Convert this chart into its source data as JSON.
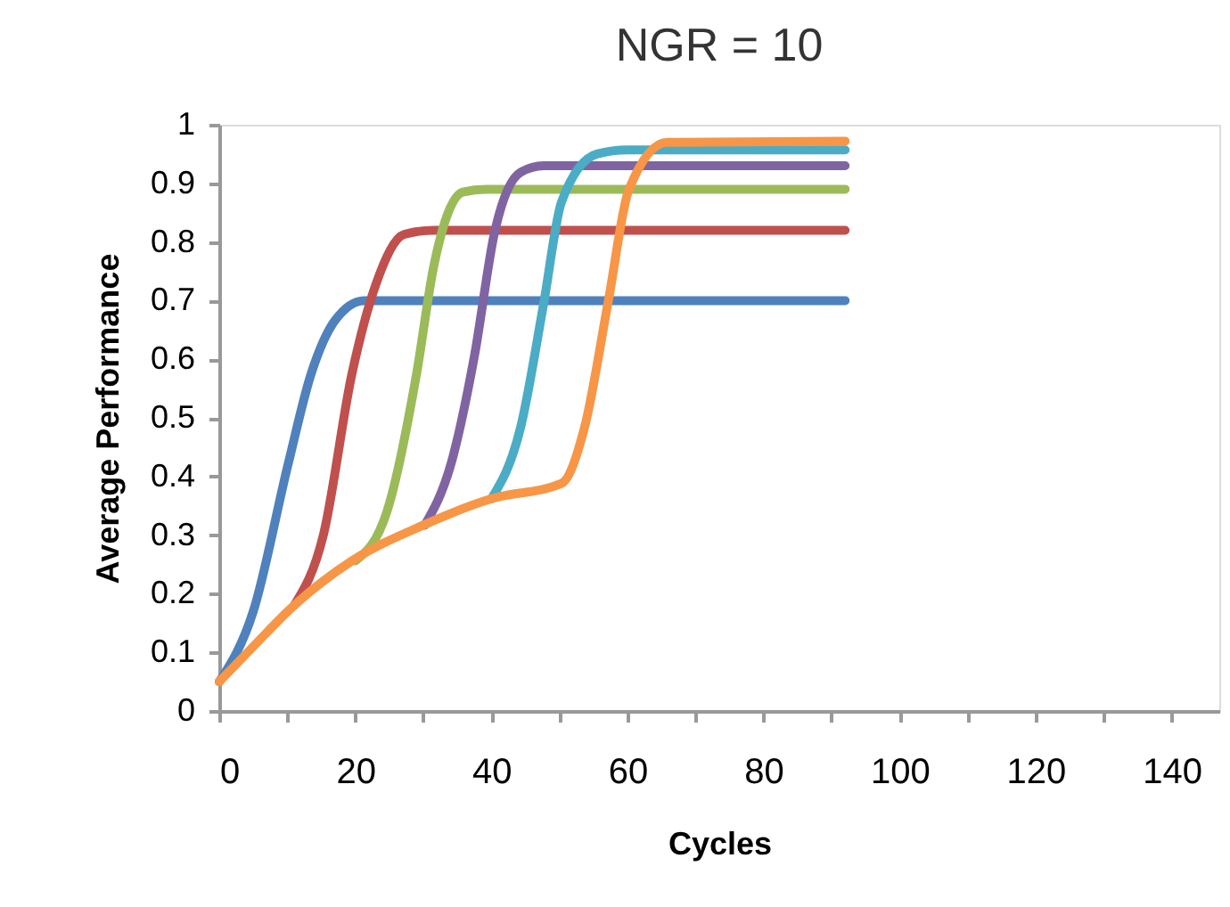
{
  "chart_data": {
    "type": "line",
    "title": "NGR = 10",
    "xlabel": "Cycles",
    "ylabel": "Average Performance",
    "xlim": [
      0,
      147
    ],
    "xticks": [
      0,
      {
        "value": 10,
        "label": null
      },
      20,
      {
        "value": 30,
        "label": null
      },
      40,
      {
        "value": 50,
        "label": null
      },
      60,
      {
        "value": 70,
        "label": null
      },
      80,
      {
        "value": 90,
        "label": null
      },
      100,
      {
        "value": 110,
        "label": null
      },
      120,
      {
        "value": 130,
        "label": null
      },
      140
    ],
    "ylim": [
      0,
      1
    ],
    "yticks": [
      0,
      0.1,
      0.2,
      0.3,
      0.4,
      0.5,
      0.6,
      0.7,
      0.8,
      0.9,
      1
    ],
    "grid": false,
    "legend": false,
    "marker": "none",
    "line_style": "solid",
    "series": [
      {
        "color": "#4f81bd",
        "x": [
          0,
          5,
          10.1,
          13.5,
          17,
          21.3,
          25,
          92
        ],
        "values": [
          0.05,
          0.17,
          0.42,
          0.575,
          0.666,
          0.7,
          0.7,
          0.7
        ]
      },
      {
        "color": "#c0504d",
        "x": [
          11,
          15.3,
          19.5,
          23,
          27.2,
          31.5,
          92
        ],
        "values": [
          0.18,
          0.3,
          0.575,
          0.727,
          0.813,
          0.82,
          0.82
        ]
      },
      {
        "color": "#9bbb59",
        "x": [
          20,
          24.7,
          29,
          31.5,
          35.8,
          39.2,
          92
        ],
        "values": [
          0.256,
          0.342,
          0.575,
          0.757,
          0.885,
          0.89,
          0.89
        ]
      },
      {
        "color": "#8064a2",
        "x": [
          30.2,
          34.1,
          37.5,
          40.5,
          44.3,
          47.7,
          92
        ],
        "values": [
          0.317,
          0.423,
          0.605,
          0.818,
          0.919,
          0.93,
          0.93
        ]
      },
      {
        "color": "#4bacc6",
        "x": [
          40,
          44.3,
          47.7,
          50.3,
          55.5,
          60,
          92
        ],
        "values": [
          0.362,
          0.484,
          0.696,
          0.868,
          0.95,
          0.957,
          0.957
        ]
      },
      {
        "color": "#f79646",
        "x": [
          0,
          5,
          11,
          19.5,
          30,
          40,
          50.3,
          53.7,
          57.2,
          60.2,
          65.8,
          92
        ],
        "values": [
          0.05,
          0.11,
          0.18,
          0.256,
          0.317,
          0.362,
          0.388,
          0.484,
          0.7,
          0.889,
          0.97,
          0.972
        ]
      }
    ]
  }
}
